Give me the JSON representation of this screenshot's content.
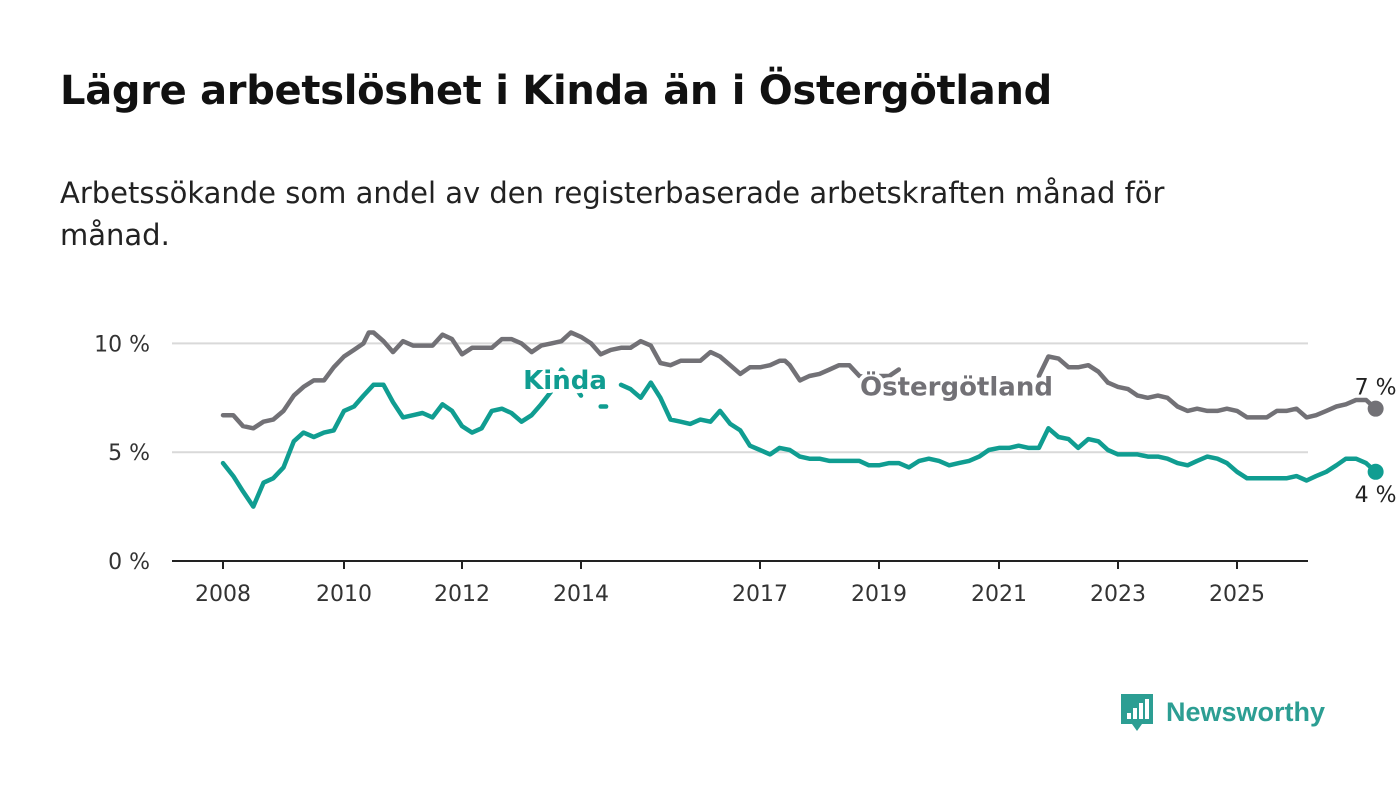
{
  "title": "Lägre arbetslöshet i Kinda än i Östergötland",
  "subtitle": "Arbetssökande som andel av den registerbaserade arbetskraften månad för månad.",
  "brand": {
    "name": "Newsworthy",
    "icon": "newsworthy-logo-icon",
    "color": "#2c9e93"
  },
  "chart_data": {
    "type": "line",
    "title": "Lägre arbetslöshet i Kinda än i Östergötland",
    "subtitle": "Arbetssökande som andel av den registerbaserade arbetskraften månad för månad.",
    "x_ticks": [
      2008,
      2010,
      2012,
      2014,
      2017,
      2019,
      2021,
      2023,
      2025
    ],
    "y_ticks": [
      {
        "value": 0,
        "label": "0 %"
      },
      {
        "value": 5,
        "label": "5 %"
      },
      {
        "value": 10,
        "label": "10 %"
      }
    ],
    "xlim": [
      2007.15,
      2026.2
    ],
    "ylim": [
      0,
      10.8
    ],
    "grid": true,
    "series": [
      {
        "name": "Östergötland",
        "color": "#727176",
        "end_label": "7 %",
        "segments": [
          [
            [
              2008.0,
              6.7
            ],
            [
              2008.17,
              6.7
            ],
            [
              2008.33,
              6.2
            ],
            [
              2008.5,
              6.1
            ],
            [
              2008.67,
              6.4
            ],
            [
              2008.83,
              6.5
            ],
            [
              2009.0,
              6.9
            ],
            [
              2009.17,
              7.6
            ],
            [
              2009.33,
              8.0
            ],
            [
              2009.5,
              8.3
            ],
            [
              2009.67,
              8.3
            ],
            [
              2009.83,
              8.9
            ],
            [
              2010.0,
              9.4
            ],
            [
              2010.17,
              9.7
            ],
            [
              2010.33,
              10.0
            ],
            [
              2010.42,
              10.5
            ],
            [
              2010.5,
              10.5
            ],
            [
              2010.67,
              10.1
            ],
            [
              2010.83,
              9.6
            ],
            [
              2011.0,
              10.1
            ],
            [
              2011.17,
              9.9
            ],
            [
              2011.33,
              9.9
            ],
            [
              2011.5,
              9.9
            ],
            [
              2011.67,
              10.4
            ],
            [
              2011.83,
              10.2
            ],
            [
              2012.0,
              9.5
            ],
            [
              2012.17,
              9.8
            ],
            [
              2012.33,
              9.8
            ],
            [
              2012.5,
              9.8
            ],
            [
              2012.67,
              10.2
            ],
            [
              2012.83,
              10.2
            ],
            [
              2013.0,
              10.0
            ],
            [
              2013.17,
              9.6
            ],
            [
              2013.33,
              9.9
            ],
            [
              2013.5,
              10.0
            ],
            [
              2013.67,
              10.1
            ],
            [
              2013.83,
              10.5
            ],
            [
              2014.0,
              10.3
            ],
            [
              2014.17,
              10.0
            ],
            [
              2014.33,
              9.5
            ],
            [
              2014.5,
              9.7
            ],
            [
              2014.67,
              9.8
            ],
            [
              2014.83,
              9.8
            ],
            [
              2015.0,
              10.1
            ],
            [
              2015.17,
              9.9
            ],
            [
              2015.33,
              9.1
            ],
            [
              2015.5,
              9.0
            ],
            [
              2015.67,
              9.2
            ],
            [
              2015.83,
              9.2
            ],
            [
              2016.0,
              9.2
            ],
            [
              2016.17,
              9.6
            ],
            [
              2016.33,
              9.4
            ],
            [
              2016.5,
              9.0
            ],
            [
              2016.67,
              8.6
            ],
            [
              2016.83,
              8.9
            ],
            [
              2017.0,
              8.9
            ],
            [
              2017.17,
              9.0
            ],
            [
              2017.33,
              9.2
            ],
            [
              2017.42,
              9.2
            ],
            [
              2017.5,
              9.0
            ],
            [
              2017.67,
              8.3
            ],
            [
              2017.83,
              8.5
            ],
            [
              2018.0,
              8.6
            ],
            [
              2018.17,
              8.8
            ],
            [
              2018.33,
              9.0
            ],
            [
              2018.5,
              9.0
            ],
            [
              2018.67,
              8.5
            ],
            [
              2018.83,
              8.4
            ],
            [
              2019.0,
              8.5
            ],
            [
              2019.17,
              8.5
            ],
            [
              2019.33,
              8.8
            ]
          ],
          [
            [
              2021.67,
              8.5
            ],
            [
              2021.83,
              9.4
            ],
            [
              2022.0,
              9.3
            ],
            [
              2022.17,
              8.9
            ],
            [
              2022.33,
              8.9
            ],
            [
              2022.5,
              9.0
            ],
            [
              2022.67,
              8.7
            ],
            [
              2022.83,
              8.2
            ]
          ],
          [
            [
              2022.83,
              8.2
            ],
            [
              2023.0,
              8.0
            ],
            [
              2023.17,
              7.9
            ],
            [
              2023.33,
              7.6
            ],
            [
              2023.5,
              7.5
            ],
            [
              2023.67,
              7.6
            ],
            [
              2023.83,
              7.5
            ],
            [
              2024.0,
              7.1
            ],
            [
              2024.17,
              6.9
            ],
            [
              2024.33,
              7.0
            ],
            [
              2024.5,
              6.9
            ],
            [
              2024.67,
              6.9
            ],
            [
              2024.83,
              7.0
            ],
            [
              2025.0,
              6.9
            ],
            [
              2025.17,
              6.6
            ],
            [
              2025.33,
              6.6
            ],
            [
              2025.5,
              6.6
            ],
            [
              2025.67,
              6.9
            ],
            [
              2025.83,
              6.9
            ],
            [
              2026.0,
              7.0
            ],
            [
              2026.17,
              6.6
            ],
            [
              2026.33,
              6.7
            ],
            [
              2026.5,
              6.9
            ],
            [
              2026.67,
              7.1
            ],
            [
              2026.83,
              7.2
            ],
            [
              2027.0,
              7.4
            ],
            [
              2027.17,
              7.4
            ],
            [
              2027.33,
              7.0
            ]
          ]
        ]
      },
      {
        "name": "Kinda",
        "color": "#109d91",
        "end_label": "4 %",
        "segments": [
          [
            [
              2008.0,
              4.5
            ],
            [
              2008.17,
              3.9
            ],
            [
              2008.33,
              3.2
            ],
            [
              2008.5,
              2.5
            ],
            [
              2008.67,
              3.6
            ],
            [
              2008.83,
              3.8
            ],
            [
              2009.0,
              4.3
            ],
            [
              2009.17,
              5.5
            ],
            [
              2009.33,
              5.9
            ],
            [
              2009.5,
              5.7
            ],
            [
              2009.67,
              5.9
            ],
            [
              2009.83,
              6.0
            ],
            [
              2010.0,
              6.9
            ],
            [
              2010.17,
              7.1
            ],
            [
              2010.33,
              7.6
            ],
            [
              2010.5,
              8.1
            ],
            [
              2010.67,
              8.1
            ],
            [
              2010.83,
              7.3
            ],
            [
              2011.0,
              6.6
            ],
            [
              2011.17,
              6.7
            ],
            [
              2011.33,
              6.8
            ],
            [
              2011.5,
              6.6
            ],
            [
              2011.67,
              7.2
            ],
            [
              2011.83,
              6.9
            ],
            [
              2012.0,
              6.2
            ],
            [
              2012.17,
              5.9
            ],
            [
              2012.33,
              6.1
            ],
            [
              2012.5,
              6.9
            ],
            [
              2012.67,
              7.0
            ],
            [
              2012.83,
              6.8
            ],
            [
              2013.0,
              6.4
            ],
            [
              2013.17,
              6.7
            ],
            [
              2013.33,
              7.2
            ],
            [
              2013.5,
              7.8
            ],
            [
              2013.67,
              8.8
            ],
            [
              2013.83,
              8.3
            ],
            [
              2014.0,
              7.6
            ]
          ],
          [
            [
              2014.33,
              7.1
            ],
            [
              2014.42,
              7.1
            ]
          ],
          [
            [
              2014.67,
              8.1
            ],
            [
              2014.83,
              7.9
            ],
            [
              2015.0,
              7.5
            ],
            [
              2015.17,
              8.2
            ],
            [
              2015.33,
              7.5
            ],
            [
              2015.5,
              6.5
            ],
            [
              2015.67,
              6.4
            ],
            [
              2015.83,
              6.3
            ],
            [
              2016.0,
              6.5
            ],
            [
              2016.17,
              6.4
            ],
            [
              2016.33,
              6.9
            ],
            [
              2016.5,
              6.3
            ],
            [
              2016.67,
              6.0
            ],
            [
              2016.83,
              5.3
            ],
            [
              2017.0,
              5.1
            ],
            [
              2017.17,
              4.9
            ],
            [
              2017.33,
              5.2
            ],
            [
              2017.5,
              5.1
            ],
            [
              2017.67,
              4.8
            ],
            [
              2017.83,
              4.7
            ],
            [
              2018.0,
              4.7
            ],
            [
              2018.17,
              4.6
            ],
            [
              2018.33,
              4.6
            ],
            [
              2018.5,
              4.6
            ],
            [
              2018.67,
              4.6
            ],
            [
              2018.83,
              4.4
            ],
            [
              2019.0,
              4.4
            ],
            [
              2019.17,
              4.5
            ],
            [
              2019.33,
              4.5
            ],
            [
              2019.5,
              4.3
            ],
            [
              2019.67,
              4.6
            ],
            [
              2019.83,
              4.7
            ],
            [
              2020.0,
              4.6
            ],
            [
              2020.17,
              4.4
            ],
            [
              2020.33,
              4.5
            ],
            [
              2020.5,
              4.6
            ],
            [
              2020.67,
              4.8
            ],
            [
              2020.83,
              5.1
            ],
            [
              2021.0,
              5.2
            ],
            [
              2021.17,
              5.2
            ],
            [
              2021.33,
              5.3
            ],
            [
              2021.5,
              5.2
            ],
            [
              2021.67,
              5.2
            ],
            [
              2021.83,
              6.1
            ],
            [
              2022.0,
              5.7
            ],
            [
              2022.17,
              5.6
            ],
            [
              2022.33,
              5.2
            ],
            [
              2022.5,
              5.6
            ],
            [
              2022.67,
              5.5
            ],
            [
              2022.83,
              5.1
            ],
            [
              2023.0,
              4.9
            ],
            [
              2023.17,
              4.9
            ],
            [
              2023.33,
              4.9
            ],
            [
              2023.5,
              4.8
            ],
            [
              2023.67,
              4.8
            ],
            [
              2023.83,
              4.7
            ],
            [
              2024.0,
              4.5
            ],
            [
              2024.17,
              4.4
            ],
            [
              2024.33,
              4.6
            ],
            [
              2024.5,
              4.8
            ],
            [
              2024.67,
              4.7
            ],
            [
              2024.83,
              4.5
            ],
            [
              2025.0,
              4.1
            ],
            [
              2025.17,
              3.8
            ],
            [
              2025.33,
              3.8
            ],
            [
              2025.5,
              3.8
            ],
            [
              2025.67,
              3.8
            ],
            [
              2025.83,
              3.8
            ],
            [
              2026.0,
              3.9
            ],
            [
              2026.17,
              3.7
            ],
            [
              2026.33,
              3.9
            ],
            [
              2026.5,
              4.1
            ],
            [
              2026.67,
              4.4
            ],
            [
              2026.83,
              4.7
            ],
            [
              2027.0,
              4.7
            ],
            [
              2027.17,
              4.5
            ],
            [
              2027.33,
              4.1
            ]
          ]
        ]
      }
    ]
  }
}
